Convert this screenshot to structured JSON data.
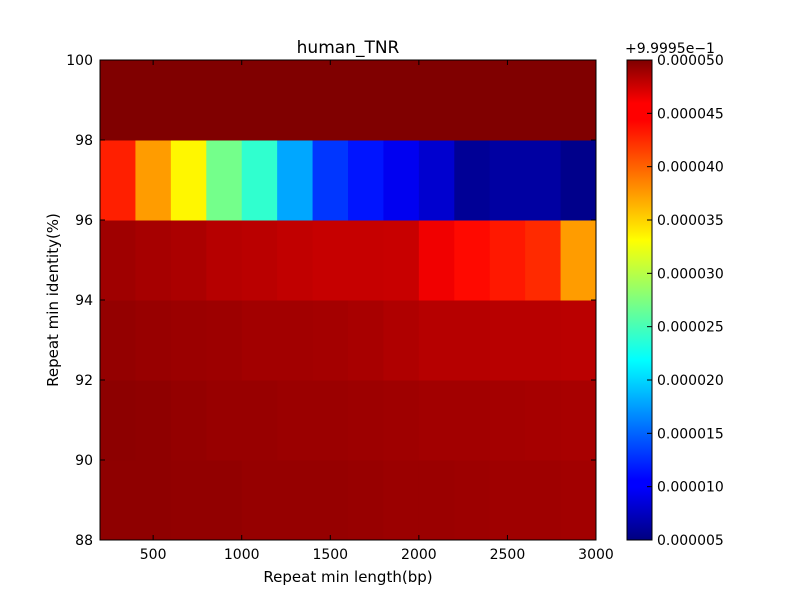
{
  "chart_data": {
    "type": "heatmap",
    "title": "human_TNR",
    "xlabel": "Repeat min length(bp)",
    "ylabel": "Repeat min identity(%)",
    "xlim": [
      200,
      3000
    ],
    "ylim": [
      88,
      100
    ],
    "x_ticks": [
      500,
      1000,
      1500,
      2000,
      2500,
      3000
    ],
    "x_tick_labels": [
      "500",
      "1000",
      "1500",
      "2000",
      "2500",
      "3000"
    ],
    "y_ticks": [
      88,
      90,
      92,
      94,
      96,
      98,
      100
    ],
    "y_tick_labels": [
      "88",
      "90",
      "92",
      "94",
      "96",
      "98",
      "100"
    ],
    "x_edges": [
      200,
      400,
      600,
      800,
      1000,
      1200,
      1400,
      1600,
      1800,
      2000,
      2200,
      2400,
      2600,
      2800,
      3000
    ],
    "y_edges": [
      88,
      90,
      92,
      94,
      96,
      98,
      100
    ],
    "z_offset_text": "+9.9995e−1",
    "z_range": [
      5e-06,
      5e-05
    ],
    "colorbar_ticks": [
      5e-06,
      1e-05,
      1.5e-05,
      2e-05,
      2.5e-05,
      3e-05,
      3.5e-05,
      4e-05,
      4.5e-05,
      5e-05
    ],
    "colorbar_tick_labels": [
      "0.000005",
      "0.000010",
      "0.000015",
      "0.000020",
      "0.000025",
      "0.000030",
      "0.000035",
      "0.000040",
      "0.000045",
      "0.000050"
    ],
    "colormap": "jet",
    "rows": [
      {
        "y_range": [
          88,
          90
        ],
        "values": [
          4.93e-05,
          4.93e-05,
          4.92e-05,
          4.92e-05,
          4.9e-05,
          4.9e-05,
          4.9e-05,
          4.89e-05,
          4.88e-05,
          4.88e-05,
          4.87e-05,
          4.86e-05,
          4.86e-05,
          4.85e-05
        ]
      },
      {
        "y_range": [
          90,
          92
        ],
        "values": [
          4.94e-05,
          4.93e-05,
          4.91e-05,
          4.89e-05,
          4.89e-05,
          4.88e-05,
          4.88e-05,
          4.87e-05,
          4.86e-05,
          4.85e-05,
          4.85e-05,
          4.84e-05,
          4.83e-05,
          4.82e-05
        ]
      },
      {
        "y_range": [
          92,
          94
        ],
        "values": [
          4.91e-05,
          4.89e-05,
          4.88e-05,
          4.87e-05,
          4.85e-05,
          4.85e-05,
          4.84e-05,
          4.82e-05,
          4.79e-05,
          4.76e-05,
          4.76e-05,
          4.75e-05,
          4.75e-05,
          4.74e-05
        ]
      },
      {
        "y_range": [
          94,
          96
        ],
        "values": [
          4.86e-05,
          4.83e-05,
          4.81e-05,
          4.76e-05,
          4.74e-05,
          4.71e-05,
          4.69e-05,
          4.69e-05,
          4.68e-05,
          4.5e-05,
          4.4e-05,
          4.33e-05,
          4.25e-05,
          3.75e-05
        ]
      },
      {
        "y_range": [
          96,
          98
        ],
        "values": [
          4.3e-05,
          3.75e-05,
          3.35e-05,
          2.7e-05,
          2.4e-05,
          1.8e-05,
          1.3e-05,
          1.15e-05,
          1e-05,
          8.5e-06,
          6e-06,
          6.5e-06,
          6.5e-06,
          5.5e-06
        ]
      },
      {
        "y_range": [
          98,
          100
        ],
        "values": [
          5e-05,
          5e-05,
          5e-05,
          5e-05,
          5e-05,
          5e-05,
          5e-05,
          5e-05,
          5e-05,
          5e-05,
          5e-05,
          5e-05,
          5e-05,
          5e-05
        ]
      }
    ],
    "grid": false,
    "legend": "colorbar-right"
  }
}
